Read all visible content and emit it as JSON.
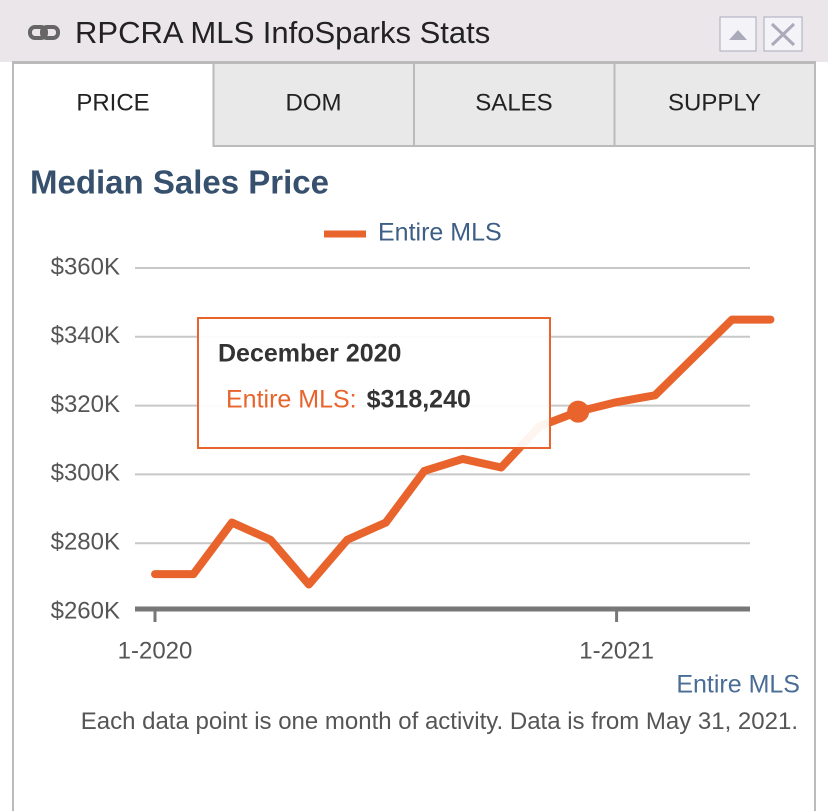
{
  "widget_title": "RPCRA MLS InfoSparks Stats",
  "tabs": [
    "PRICE",
    "DOM",
    "SALES",
    "SUPPLY"
  ],
  "chart_data": {
    "type": "line",
    "title": "Median Sales Price",
    "x": [
      "1-2020",
      "2-2020",
      "3-2020",
      "4-2020",
      "5-2020",
      "6-2020",
      "7-2020",
      "8-2020",
      "9-2020",
      "10-2020",
      "11-2020",
      "12-2020",
      "1-2021",
      "2-2021",
      "3-2021",
      "4-2021",
      "5-2021"
    ],
    "series": [
      {
        "name": "Entire MLS",
        "color": "#e8642c",
        "values": [
          271000,
          271000,
          286000,
          281000,
          268000,
          281000,
          286000,
          301000,
          304500,
          302000,
          314000,
          318240,
          321000,
          323000,
          334000,
          345000,
          345000
        ]
      }
    ],
    "ylim": [
      260000,
      360000
    ],
    "yticks": [
      {
        "value": 260000,
        "label": "$260K"
      },
      {
        "value": 280000,
        "label": "$280K"
      },
      {
        "value": 300000,
        "label": "$300K"
      },
      {
        "value": 320000,
        "label": "$320K"
      },
      {
        "value": 340000,
        "label": "$340K"
      },
      {
        "value": 360000,
        "label": "$360K"
      }
    ],
    "xticks": [
      "1-2020",
      "1-2021"
    ],
    "grid": true,
    "legend": "top",
    "tooltip": {
      "x": "12-2020",
      "title": "December 2020",
      "label": "Entire MLS:",
      "value": 318240,
      "value_label": "$318,240"
    },
    "credit": "Entire MLS",
    "footnote": "Each data point is one month of activity. Data is from May 31, 2021."
  }
}
